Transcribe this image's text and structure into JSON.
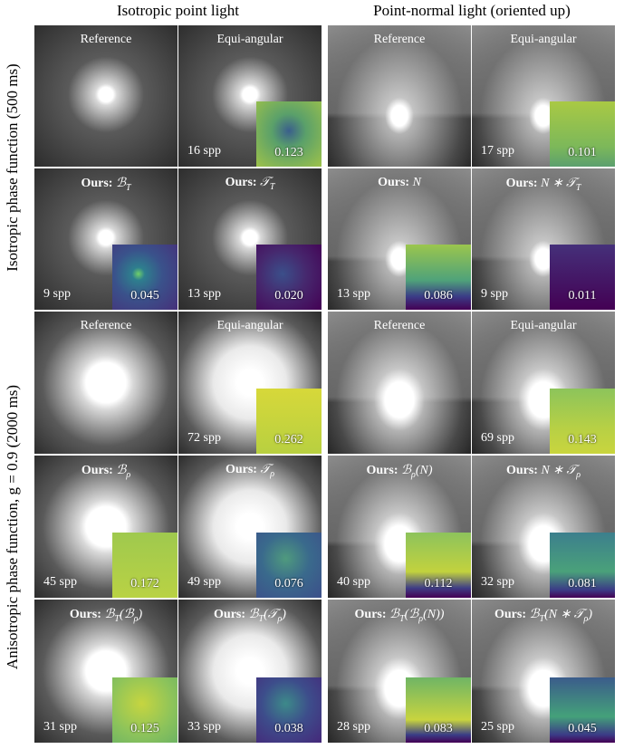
{
  "column_headers": [
    "Isotropic point light",
    "Point-normal light (oriented up)"
  ],
  "row_labels": [
    "Isotropic phase function (500 ms)",
    "Anisotropic phase function, g = 0.9 (2000 ms)"
  ],
  "panels": [
    {
      "label": "Reference"
    },
    {
      "label": "Equi-angular",
      "spp": "16 spp",
      "error": "0.123"
    },
    {
      "label": "Reference"
    },
    {
      "label": "Equi-angular",
      "spp": "17 spp",
      "error": "0.101"
    },
    {
      "prefix": "Ours:",
      "math": [
        "ℬ",
        {
          "sub": "T"
        }
      ],
      "spp": "9 spp",
      "error": "0.045"
    },
    {
      "prefix": "Ours:",
      "math": [
        "𝒯",
        {
          "sub": "T"
        }
      ],
      "spp": "13 spp",
      "error": "0.020"
    },
    {
      "prefix": "Ours:",
      "math": [
        "N"
      ],
      "spp": "13 spp",
      "error": "0.086"
    },
    {
      "prefix": "Ours:",
      "math": [
        "N ∗ 𝒯",
        {
          "sub": "T"
        }
      ],
      "spp": "9 spp",
      "error": "0.011"
    },
    {
      "label": "Reference"
    },
    {
      "label": "Equi-angular",
      "spp": "72 spp",
      "error": "0.262"
    },
    {
      "label": "Reference"
    },
    {
      "label": "Equi-angular",
      "spp": "69 spp",
      "error": "0.143"
    },
    {
      "prefix": "Ours:",
      "math": [
        "ℬ",
        {
          "sub": "ρ"
        }
      ],
      "spp": "45 spp",
      "error": "0.172"
    },
    {
      "prefix": "Ours:",
      "math": [
        "𝒯",
        {
          "sub": "ρ"
        }
      ],
      "spp": "49 spp",
      "error": "0.076"
    },
    {
      "prefix": "Ours:",
      "math": [
        "ℬ",
        {
          "sub": "ρ"
        },
        "(N)"
      ],
      "spp": "40 spp",
      "error": "0.112"
    },
    {
      "prefix": "Ours:",
      "math": [
        "N ∗ 𝒯",
        {
          "sub": "ρ"
        }
      ],
      "spp": "32 spp",
      "error": "0.081"
    },
    {
      "prefix": "Ours:",
      "math": [
        "ℬ",
        {
          "sub": "T"
        },
        "(ℬ",
        {
          "sub": "ρ"
        },
        ")"
      ],
      "spp": "31 spp",
      "error": "0.125"
    },
    {
      "prefix": "Ours:",
      "math": [
        "ℬ",
        {
          "sub": "T"
        },
        "(𝒯",
        {
          "sub": "ρ"
        },
        ")"
      ],
      "spp": "33 spp",
      "error": "0.038"
    },
    {
      "prefix": "Ours:",
      "math": [
        "ℬ",
        {
          "sub": "T"
        },
        "(ℬ",
        {
          "sub": "ρ"
        },
        "(N))"
      ],
      "spp": "28 spp",
      "error": "0.083"
    },
    {
      "prefix": "Ours:",
      "math": [
        "ℬ",
        {
          "sub": "T"
        },
        "(N ∗ 𝒯",
        {
          "sub": "ρ"
        },
        ")"
      ],
      "spp": "25 spp",
      "error": "0.045"
    }
  ]
}
